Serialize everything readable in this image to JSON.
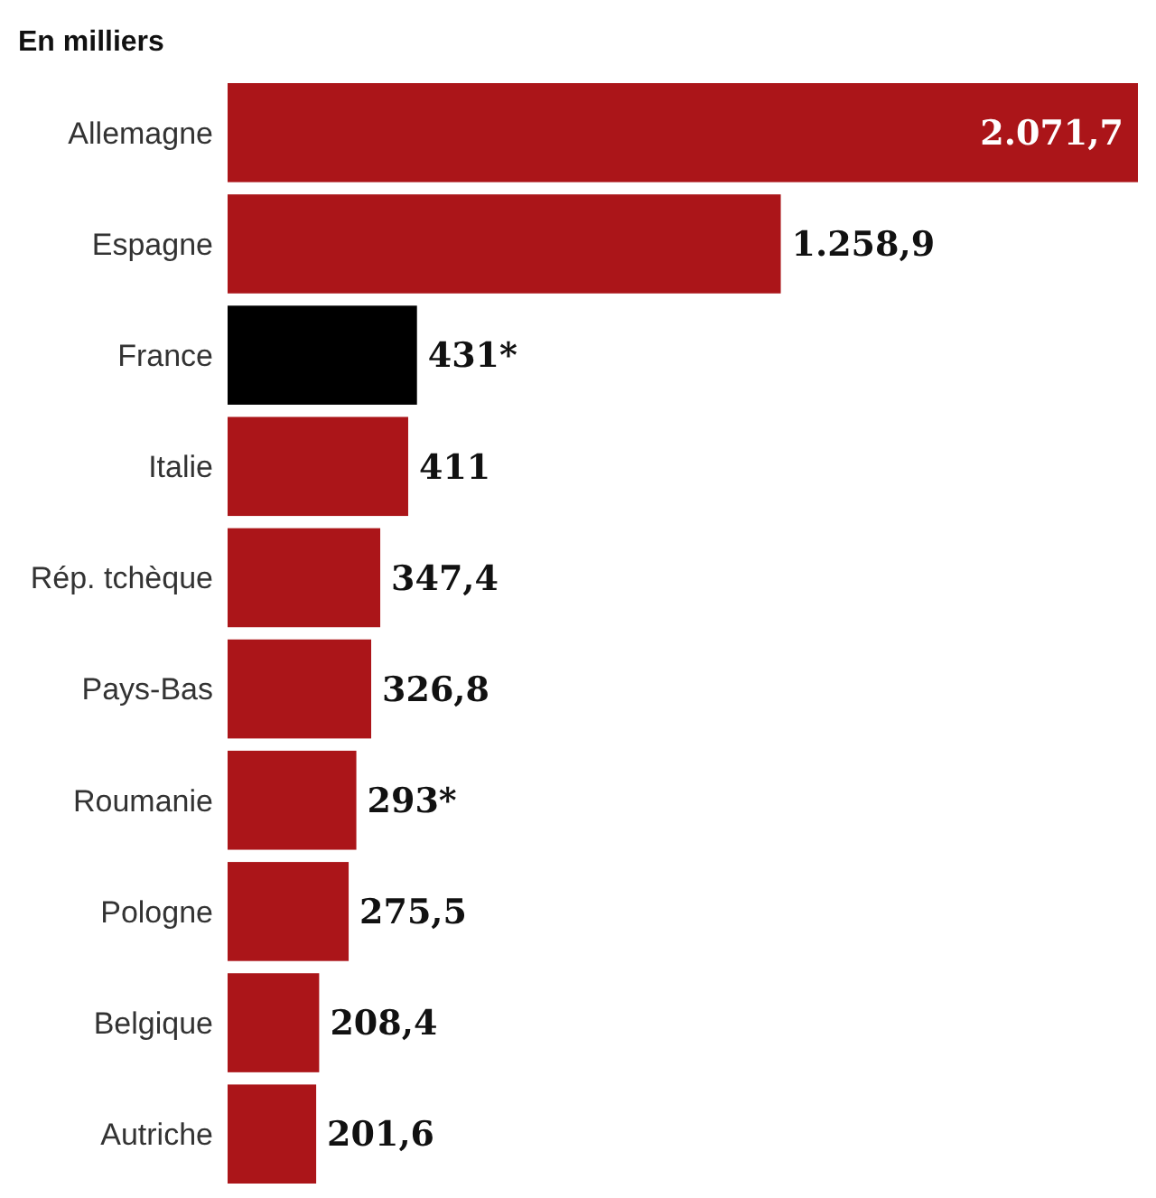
{
  "chart_data": {
    "type": "bar",
    "orientation": "horizontal",
    "title": "En milliers",
    "categories": [
      "Allemagne",
      "Espagne",
      "France",
      "Italie",
      "Rép. tchèque",
      "Pays-Bas",
      "Roumanie",
      "Pologne",
      "Belgique",
      "Autriche"
    ],
    "values": [
      2071.7,
      1258.9,
      431,
      411,
      347.4,
      326.8,
      293,
      275.5,
      208.4,
      201.6
    ],
    "value_labels": [
      "2.071,7",
      "1.258,9",
      "431*",
      "411",
      "347,4",
      "326,8",
      "293*",
      "275,5",
      "208,4",
      "201,6"
    ],
    "colors": [
      "#ab1519",
      "#ab1519",
      "#000000",
      "#ab1519",
      "#ab1519",
      "#ab1519",
      "#ab1519",
      "#ab1519",
      "#ab1519",
      "#ab1519"
    ]
  }
}
